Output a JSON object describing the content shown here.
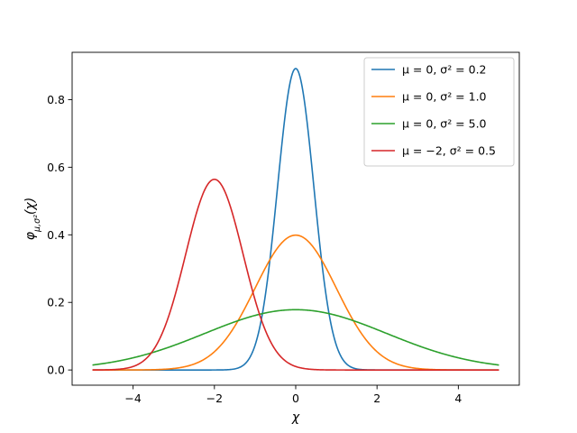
{
  "chart_data": {
    "type": "line",
    "title": "",
    "xlabel": "χ",
    "ylabel": "φ",
    "ylabel_sub": "μ,σ²",
    "ylabel_args": "(χ)",
    "xlim": [
      -5.5,
      5.5
    ],
    "ylim": [
      -0.045,
      0.94
    ],
    "x_sample_range": [
      -5,
      5
    ],
    "x_ticks": [
      -4,
      -2,
      0,
      2,
      4
    ],
    "x_tick_labels": [
      "−4",
      "−2",
      "0",
      "2",
      "4"
    ],
    "y_ticks": [
      0.0,
      0.2,
      0.4,
      0.6,
      0.8
    ],
    "y_tick_labels": [
      "0.0",
      "0.2",
      "0.4",
      "0.6",
      "0.8"
    ],
    "grid": false,
    "legend_position": "top-right",
    "series": [
      {
        "name": "μ = 0, σ² = 0.2",
        "mu": 0,
        "sigma2": 0.2,
        "color": "#1f77b4"
      },
      {
        "name": "μ = 0, σ² = 1.0",
        "mu": 0,
        "sigma2": 1.0,
        "color": "#ff7f0e"
      },
      {
        "name": "μ = 0, σ² = 5.0",
        "mu": 0,
        "sigma2": 5.0,
        "color": "#2ca02c"
      },
      {
        "name": "μ = −2, σ² = 0.5",
        "mu": -2,
        "sigma2": 0.5,
        "color": "#d62728"
      }
    ]
  }
}
